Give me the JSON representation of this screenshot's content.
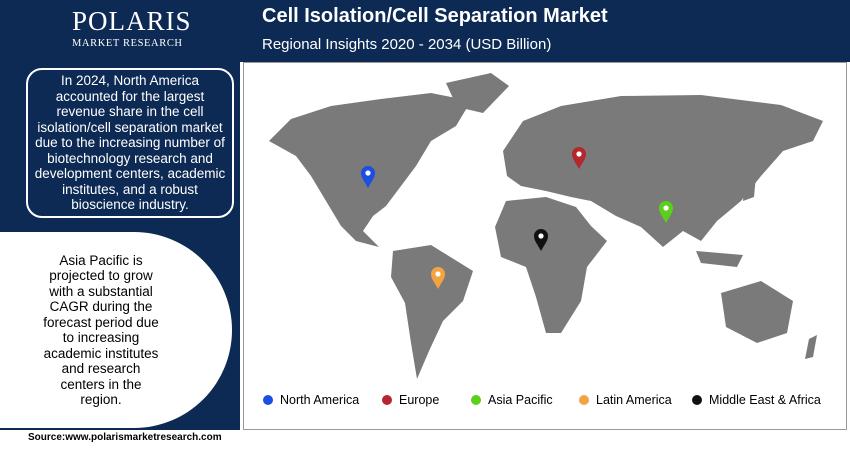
{
  "header": {
    "logo": "POLARIS",
    "logo_subtitle": "MARKET RESEARCH",
    "title": "Cell Isolation/Cell Separation Market",
    "subtitle": "Regional Insights 2020 - 2034 (USD Billion)"
  },
  "insights": [
    "In 2024, North America accounted for the largest revenue share in the cell isolation/cell separation market due to the increasing number of biotechnology research and development centers, academic institutes, and a robust bioscience industry.",
    "Asia Pacific is projected to grow with a substantial CAGR during the forecast period due to increasing academic institutes and research centers in the region."
  ],
  "legend": [
    {
      "name": "North America",
      "color": "#1a4fe0"
    },
    {
      "name": "Europe",
      "color": "#b3282d"
    },
    {
      "name": "Asia Pacific",
      "color": "#5ccf1c"
    },
    {
      "name": "Latin America",
      "color": "#f4a340"
    },
    {
      "name": "Middle East & Africa",
      "color": "#111111"
    }
  ],
  "source": "Source:www.polarismarketresearch.com"
}
